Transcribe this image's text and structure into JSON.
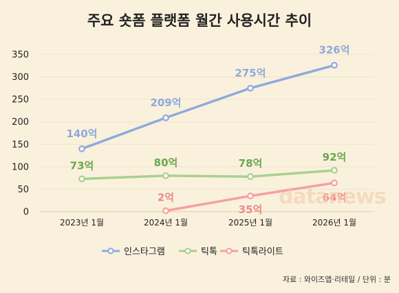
{
  "chart_data": {
    "type": "line",
    "title": "주요 숏폼 플랫폼 월간 사용시간 추이",
    "categories": [
      "2023년 1월",
      "2024년 1월",
      "2025년 1월",
      "2026년 1월"
    ],
    "ylim": [
      0,
      350
    ],
    "yticks": [
      0,
      50,
      100,
      150,
      200,
      250,
      300,
      350
    ],
    "grid": true,
    "legend": "bottom",
    "series": [
      {
        "name": "인스타그램",
        "color": "#8fa9dc",
        "labelColor": "#8fa9dc",
        "values": [
          140,
          209,
          275,
          326
        ],
        "labels": [
          "140억",
          "209억",
          "275억",
          "326억"
        ]
      },
      {
        "name": "틱톡",
        "color": "#a8d18d",
        "labelColor": "#6aa84f",
        "values": [
          73,
          80,
          78,
          92
        ],
        "labels": [
          "73억",
          "80억",
          "78억",
          "92억"
        ]
      },
      {
        "name": "틱톡라이트",
        "color": "#f4a0a0",
        "labelColor": "#ea8a8a",
        "values": [
          null,
          2,
          35,
          64
        ],
        "labels": [
          "",
          "2억",
          "35억",
          "64억"
        ]
      }
    ]
  },
  "watermark": "datanews",
  "source": "자료 : 와이즈앱·리테일 / 단위 : 분"
}
